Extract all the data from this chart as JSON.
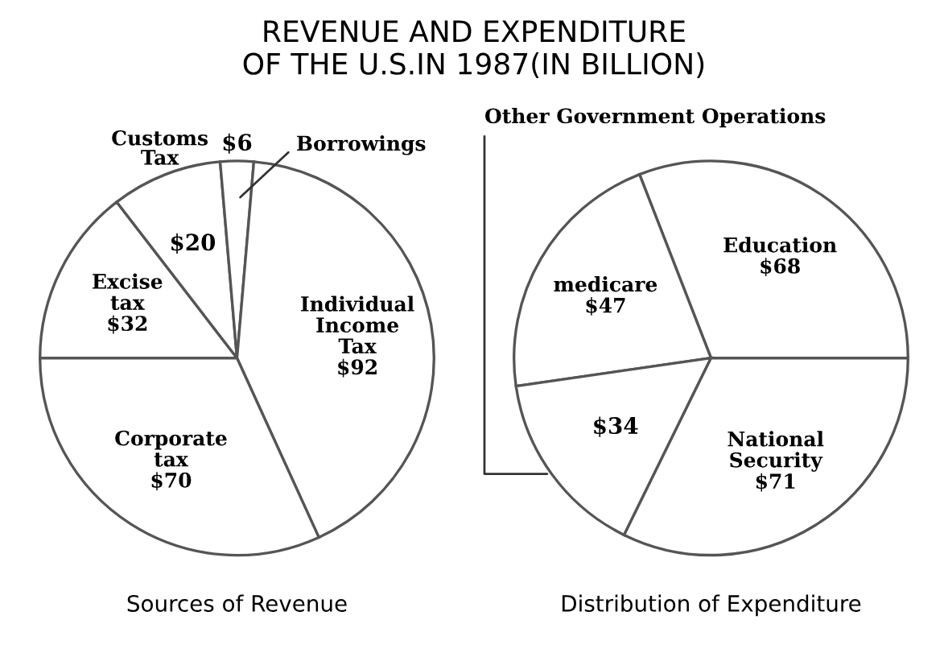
{
  "chart_data": [
    {
      "type": "pie",
      "title": "REVENUE AND EXPENDITURE\nOF THE U.S.IN 1987(IN BILLION)",
      "subtitle": "Sources of Revenue",
      "categories": [
        "Excise tax",
        "Customs Tax",
        "Borrowings",
        "Individual Income Tax",
        "Corporate tax"
      ],
      "values": [
        32,
        20,
        6,
        92,
        70
      ],
      "value_labels": [
        "$32",
        "$20",
        "$6",
        "$92",
        "$70"
      ],
      "colors": [
        "#ffffff",
        "#ffffff",
        "#ffffff",
        "#ffffff",
        "#ffffff"
      ]
    },
    {
      "type": "pie",
      "subtitle": "Distribution of Expenditure",
      "categories": [
        "Education",
        "medicare",
        "Other Government Operations",
        "National Security"
      ],
      "values": [
        68,
        47,
        34,
        71
      ],
      "value_labels": [
        "$68",
        "$47",
        "$34",
        "$71"
      ],
      "colors": [
        "#ffffff",
        "#ffffff",
        "#ffffff",
        "#ffffff"
      ]
    }
  ]
}
